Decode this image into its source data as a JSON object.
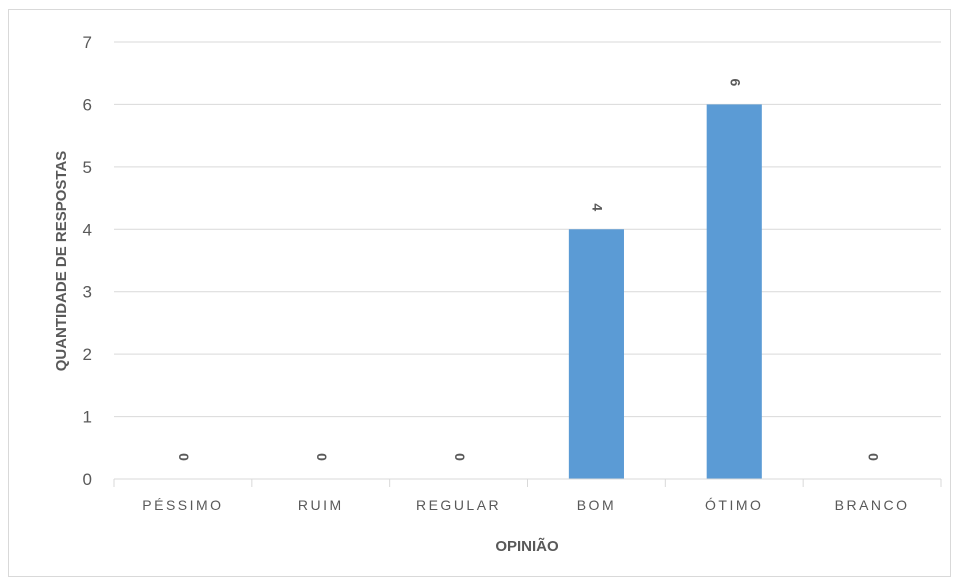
{
  "chart_data": {
    "type": "bar",
    "categories": [
      "PÉSSIMO",
      "RUIM",
      "REGULAR",
      "BOM",
      "ÓTIMO",
      "BRANCO"
    ],
    "values": [
      0,
      0,
      0,
      4,
      6,
      0
    ],
    "title": "",
    "xlabel": "OPINIÃO",
    "ylabel": "QUANTIDADE  DE RESPOSTAS",
    "ylim": [
      0,
      7
    ],
    "yticks": [
      0,
      1,
      2,
      3,
      4,
      5,
      6,
      7
    ],
    "grid": true,
    "data_labels": true,
    "bar_color": "#5b9bd5",
    "legend": "none"
  }
}
